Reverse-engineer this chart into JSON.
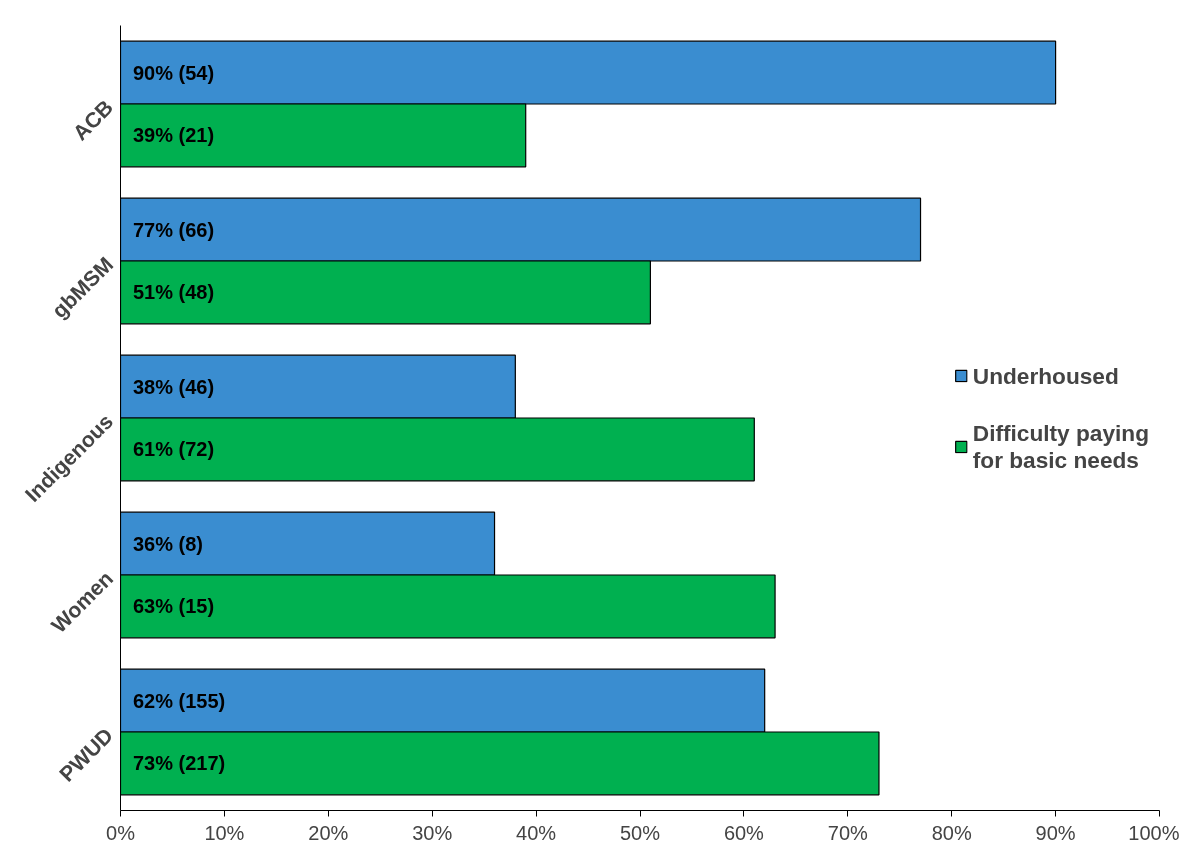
{
  "chart_data": {
    "type": "bar",
    "orientation": "horizontal",
    "categories": [
      "ACB",
      "gbMSM",
      "Indigenous",
      "Women",
      "PWUD"
    ],
    "series": [
      {
        "name": "Underhoused",
        "color": "#3a8dd0",
        "values": [
          90,
          77,
          38,
          36,
          62
        ],
        "value_labels": [
          "90% (54)",
          "77% (66)",
          "38% (46)",
          "36% (8)",
          "62% (155)"
        ]
      },
      {
        "name": "Difficulty paying for basic needs",
        "color": "#00b050",
        "values": [
          39,
          51,
          61,
          63,
          73
        ],
        "value_labels": [
          "39% (21)",
          "51% (48)",
          "61% (72)",
          "63% (15)",
          "73% (217)"
        ]
      }
    ],
    "xlim": [
      0,
      100
    ],
    "xticks": [
      {
        "value": 0,
        "label": "0%"
      },
      {
        "value": 10,
        "label": "10%"
      },
      {
        "value": 20,
        "label": "20%"
      },
      {
        "value": 30,
        "label": "30%"
      },
      {
        "value": 40,
        "label": "40%"
      },
      {
        "value": 50,
        "label": "50%"
      },
      {
        "value": 60,
        "label": "60%"
      },
      {
        "value": 70,
        "label": "70%"
      },
      {
        "value": 80,
        "label": "80%"
      },
      {
        "value": 90,
        "label": "90%"
      },
      {
        "value": 100,
        "label": "100%"
      }
    ],
    "grid": false,
    "legend": "right"
  }
}
